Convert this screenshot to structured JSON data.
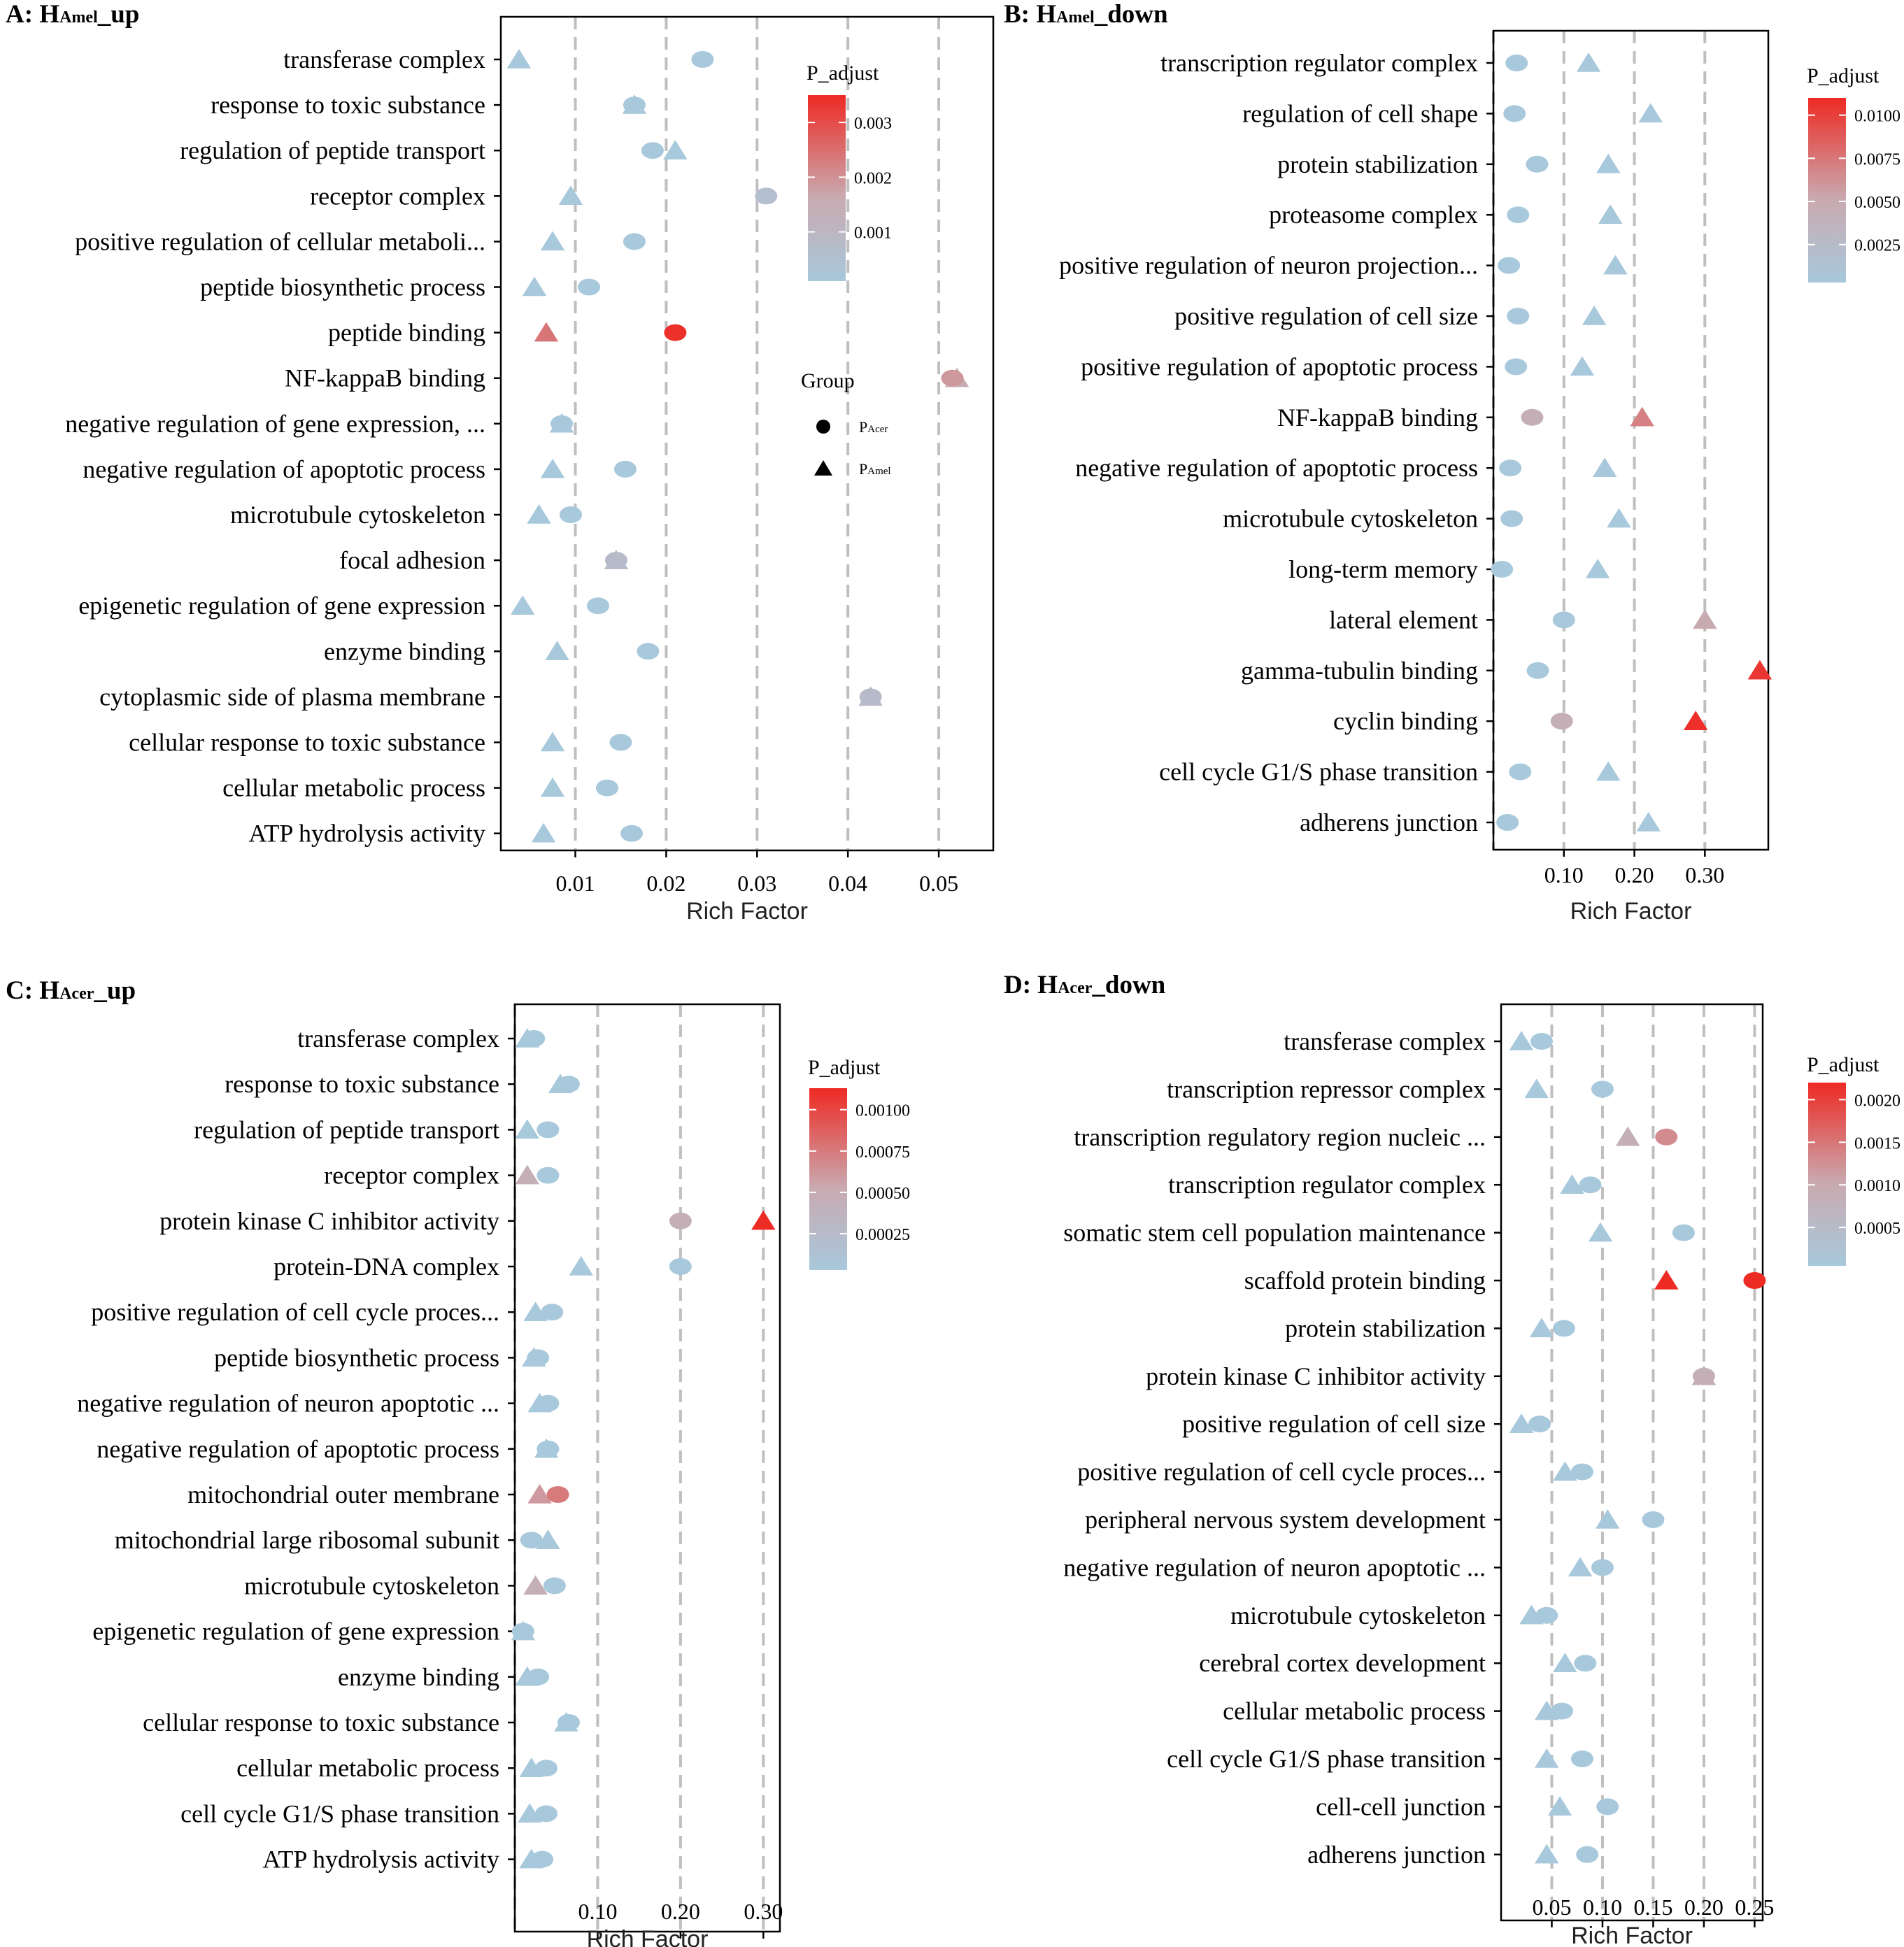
{
  "chart_data": [
    {
      "id": "A",
      "type": "scatter",
      "title_prefix": "A: H",
      "title_sub": "Amel",
      "title_suffix": "_up",
      "xlabel": "Rich Factor",
      "xlim": [
        0.0018,
        0.056
      ],
      "xticks": [
        0.01,
        0.02,
        0.03,
        0.04,
        0.05
      ],
      "xtick_labels": [
        "0.01",
        "0.02",
        "0.03",
        "0.04",
        "0.05"
      ],
      "gridlines": [
        0.01,
        0.02,
        0.03,
        0.04,
        0.05
      ],
      "categories": [
        "transferase complex",
        "response to toxic substance",
        "regulation of peptide transport",
        "receptor complex",
        "positive regulation of cellular metaboli...",
        "peptide biosynthetic process",
        "peptide binding",
        "NF-kappaB binding",
        "negative regulation of gene expression, ...",
        "negative regulation of apoptotic process",
        "microtubule cytoskeleton",
        "focal adhesion",
        "epigenetic regulation of gene expression",
        "enzyme binding",
        "cytoplasmic side of plasma membrane",
        "cellular response to toxic substance",
        "cellular metabolic process",
        "ATP hydrolysis activity"
      ],
      "series": [
        {
          "name": "PAcer",
          "marker": "circle",
          "x": [
            0.024,
            0.0165,
            0.0185,
            0.031,
            0.0165,
            0.0115,
            0.021,
            0.0515,
            0.0085,
            0.0155,
            0.0095,
            0.0145,
            0.0125,
            0.018,
            0.0425,
            0.015,
            0.0135,
            0.0162
          ],
          "p": [
            0.0001,
            0.0001,
            0.0001,
            0.0006,
            0.0001,
            0.0001,
            0.0034,
            0.0019,
            0.0001,
            0.0001,
            0.0001,
            0.0008,
            0.0001,
            0.0001,
            0.0008,
            0.0001,
            0.0001,
            0.0001
          ]
        },
        {
          "name": "PAmel",
          "marker": "triangle",
          "x": [
            0.0038,
            0.0165,
            0.021,
            0.0095,
            0.0075,
            0.0055,
            0.0068,
            0.052,
            0.0085,
            0.0075,
            0.006,
            0.0145,
            0.0042,
            0.008,
            0.0425,
            0.0075,
            0.0075,
            0.0065
          ],
          "p": [
            0.0001,
            0.0001,
            0.0001,
            0.0001,
            0.0001,
            0.0001,
            0.0024,
            0.0016,
            0.0001,
            0.0001,
            0.0001,
            0.0008,
            0.0001,
            0.0001,
            0.0008,
            0.0001,
            0.0001,
            0.0001
          ]
        }
      ],
      "color_legend": {
        "title": "P_adjust",
        "min": 0.0001,
        "max": 0.0035,
        "ticks": [
          0.003,
          0.002,
          0.001
        ],
        "tick_labels": [
          "0.003",
          "0.002",
          "0.001"
        ]
      },
      "shape_legend": {
        "title": "Group",
        "items": [
          {
            "marker": "circle",
            "label_main": "P",
            "label_sub": "Acer"
          },
          {
            "marker": "triangle",
            "label_main": "P",
            "label_sub": "Amel"
          }
        ]
      }
    },
    {
      "id": "B",
      "type": "scatter",
      "title_prefix": "B: H",
      "title_sub": "Amel",
      "title_suffix": "_down",
      "xlabel": "Rich Factor",
      "xlim": [
        0.0,
        0.39
      ],
      "xticks": [
        0.1,
        0.2,
        0.3
      ],
      "xtick_labels": [
        "0.10",
        "0.20",
        "0.30"
      ],
      "gridlines": [
        0.0,
        0.1,
        0.2,
        0.3
      ],
      "categories": [
        "transcription regulator complex",
        "regulation of cell shape",
        "protein stabilization",
        "proteasome complex",
        "positive regulation of neuron projection...",
        "positive regulation of cell size",
        "positive regulation of apoptotic process",
        "NF-kappaB binding",
        "negative regulation of apoptotic process",
        "microtubule cytoskeleton",
        "long-term memory",
        "lateral element",
        "gamma-tubulin binding",
        "cyclin binding",
        "cell cycle G1/S phase transition",
        "adherens junction"
      ],
      "series": [
        {
          "name": "PAcer",
          "marker": "circle",
          "x": [
            0.033,
            0.03,
            0.062,
            0.035,
            0.022,
            0.035,
            0.032,
            0.055,
            0.024,
            0.026,
            0.012,
            0.1,
            0.063,
            0.097,
            0.038,
            0.02
          ],
          "p": [
            0.0003,
            0.0003,
            0.0003,
            0.0003,
            0.0003,
            0.0003,
            0.0003,
            0.004,
            0.0003,
            0.0003,
            0.0003,
            0.0003,
            0.0003,
            0.004,
            0.0003,
            0.0003
          ],
          "grayish": [
            false,
            false,
            false,
            false,
            false,
            false,
            false,
            true,
            false,
            false,
            false,
            false,
            false,
            true,
            false,
            false
          ]
        },
        {
          "name": "PAmel",
          "marker": "triangle",
          "x": [
            0.135,
            0.223,
            0.163,
            0.166,
            0.173,
            0.143,
            0.126,
            0.211,
            0.158,
            0.178,
            0.148,
            0.3,
            0.378,
            0.287,
            0.163,
            0.22
          ],
          "p": [
            0.0003,
            0.0003,
            0.0003,
            0.0003,
            0.0003,
            0.0003,
            0.0003,
            0.007,
            0.0003,
            0.0003,
            0.0003,
            0.005,
            0.0105,
            0.0108,
            0.0003,
            0.0003
          ],
          "grayish": [
            false,
            false,
            false,
            false,
            false,
            false,
            false,
            false,
            false,
            false,
            false,
            true,
            false,
            false,
            false,
            false
          ]
        }
      ],
      "color_legend": {
        "title": "P_adjust",
        "min": 0.0003,
        "max": 0.011,
        "ticks": [
          0.01,
          0.0075,
          0.005,
          0.0025
        ],
        "tick_labels": [
          "0.0100",
          "0.0075",
          "0.0050",
          "0.0025"
        ]
      }
    },
    {
      "id": "C",
      "type": "scatter",
      "title_prefix": "C: H",
      "title_sub": "Acer",
      "title_suffix": "_up",
      "xlabel": "Rich Factor",
      "xlim": [
        0.0,
        0.32
      ],
      "xticks": [
        0.1,
        0.2,
        0.3
      ],
      "xtick_labels": [
        "0.10",
        "0.20",
        "0.30"
      ],
      "gridlines": [
        0.0,
        0.1,
        0.2,
        0.3
      ],
      "categories": [
        "transferase complex",
        "response to toxic substance",
        "regulation of peptide transport",
        "receptor complex",
        "protein kinase C inhibitor activity",
        "protein-DNA complex",
        "positive regulation of cell cycle proces...",
        "peptide biosynthetic process",
        "negative regulation of neuron apoptotic ...",
        "negative regulation of apoptotic process",
        "mitochondrial outer membrane",
        "mitochondrial large ribosomal subunit",
        "microtubule cytoskeleton",
        "epigenetic regulation of gene expression",
        "enzyme binding",
        "cellular response to toxic substance",
        "cellular metabolic process",
        "cell cycle G1/S phase transition",
        "ATP hydrolysis activity"
      ],
      "series": [
        {
          "name": "PAcer",
          "marker": "circle",
          "x": [
            0.023,
            0.065,
            0.04,
            0.04,
            0.2,
            0.2,
            0.045,
            0.028,
            0.04,
            0.04,
            0.052,
            0.02,
            0.048,
            0.01,
            0.028,
            0.065,
            0.038,
            0.038,
            0.033
          ],
          "p": [
            3e-05,
            3e-05,
            3e-05,
            3e-05,
            0.00045,
            3e-05,
            3e-05,
            3e-05,
            3e-05,
            3e-05,
            0.00075,
            3e-05,
            3e-05,
            3e-05,
            3e-05,
            3e-05,
            3e-05,
            3e-05,
            3e-05
          ],
          "grayish": [
            false,
            false,
            false,
            false,
            true,
            false,
            false,
            false,
            false,
            false,
            false,
            false,
            false,
            false,
            false,
            false,
            false,
            false,
            false
          ]
        },
        {
          "name": "PAmel",
          "marker": "triangle",
          "x": [
            0.015,
            0.055,
            0.015,
            0.015,
            0.3,
            0.08,
            0.025,
            0.023,
            0.03,
            0.038,
            0.03,
            0.04,
            0.025,
            0.01,
            0.015,
            0.062,
            0.02,
            0.018,
            0.02
          ],
          "p": [
            3e-05,
            3e-05,
            3e-05,
            3e-05,
            0.00112,
            3e-05,
            3e-05,
            3e-05,
            3e-05,
            3e-05,
            0.0006,
            3e-05,
            0.0003,
            3e-05,
            3e-05,
            3e-05,
            3e-05,
            3e-05,
            3e-05
          ],
          "grayish": [
            false,
            false,
            false,
            true,
            false,
            false,
            false,
            false,
            false,
            false,
            false,
            false,
            true,
            false,
            false,
            false,
            false,
            false,
            false
          ]
        }
      ],
      "color_legend": {
        "title": "P_adjust",
        "min": 3e-05,
        "max": 0.00113,
        "ticks": [
          0.001,
          0.00075,
          0.0005,
          0.00025
        ],
        "tick_labels": [
          "0.00100",
          "0.00075",
          "0.00050",
          "0.00025"
        ]
      }
    },
    {
      "id": "D",
      "type": "scatter",
      "title_prefix": "D: H",
      "title_sub": "Acer",
      "title_suffix": "_down",
      "xlabel": "Rich Factor",
      "xlim": [
        0.0,
        0.258
      ],
      "xticks": [
        0.05,
        0.1,
        0.15,
        0.2,
        0.25
      ],
      "xtick_labels": [
        "0.05",
        "0.10",
        "0.15",
        "0.20",
        "0.25"
      ],
      "gridlines": [
        0.05,
        0.1,
        0.15,
        0.2,
        0.25
      ],
      "categories": [
        "transferase complex",
        "transcription repressor complex",
        "transcription regulatory region nucleic ...",
        "transcription regulator complex",
        "somatic stem cell population maintenance",
        "scaffold protein binding",
        "protein stabilization",
        "protein kinase C inhibitor activity",
        "positive regulation of cell size",
        "positive regulation of cell cycle proces...",
        "peripheral nervous system development",
        "negative regulation of neuron apoptotic ...",
        "microtubule cytoskeleton",
        "cerebral cortex development",
        "cellular metabolic process",
        "cell cycle G1/S phase transition",
        "cell-cell junction",
        "adherens junction"
      ],
      "series": [
        {
          "name": "PAcer",
          "marker": "circle",
          "x": [
            0.04,
            0.1,
            0.163,
            0.088,
            0.18,
            0.25,
            0.062,
            0.2,
            0.038,
            0.08,
            0.15,
            0.1,
            0.045,
            0.083,
            0.06,
            0.08,
            0.105,
            0.085
          ],
          "p": [
            5e-05,
            5e-05,
            0.0013,
            5e-05,
            5e-05,
            0.0022,
            5e-05,
            0.0005,
            5e-05,
            5e-05,
            5e-05,
            5e-05,
            5e-05,
            5e-05,
            5e-05,
            5e-05,
            5e-05,
            5e-05
          ],
          "grayish": [
            false,
            false,
            false,
            false,
            false,
            false,
            false,
            true,
            false,
            false,
            false,
            false,
            false,
            false,
            false,
            false,
            false,
            false
          ]
        },
        {
          "name": "PAmel",
          "marker": "triangle",
          "x": [
            0.02,
            0.035,
            0.125,
            0.07,
            0.098,
            0.163,
            0.04,
            0.2,
            0.02,
            0.063,
            0.105,
            0.078,
            0.03,
            0.063,
            0.045,
            0.045,
            0.058,
            0.045
          ],
          "p": [
            5e-05,
            5e-05,
            0.0008,
            5e-05,
            5e-05,
            0.0022,
            5e-05,
            0.0005,
            5e-05,
            5e-05,
            5e-05,
            5e-05,
            5e-05,
            5e-05,
            5e-05,
            5e-05,
            5e-05,
            5e-05
          ],
          "grayish": [
            false,
            false,
            true,
            false,
            false,
            false,
            false,
            true,
            false,
            false,
            false,
            false,
            false,
            false,
            false,
            false,
            false,
            false
          ]
        }
      ],
      "color_legend": {
        "title": "P_adjust",
        "min": 5e-05,
        "max": 0.0022,
        "ticks": [
          0.002,
          0.0015,
          0.001,
          0.0005
        ],
        "tick_labels": [
          "0.0020",
          "0.0015",
          "0.0010",
          "0.0005"
        ]
      }
    }
  ]
}
